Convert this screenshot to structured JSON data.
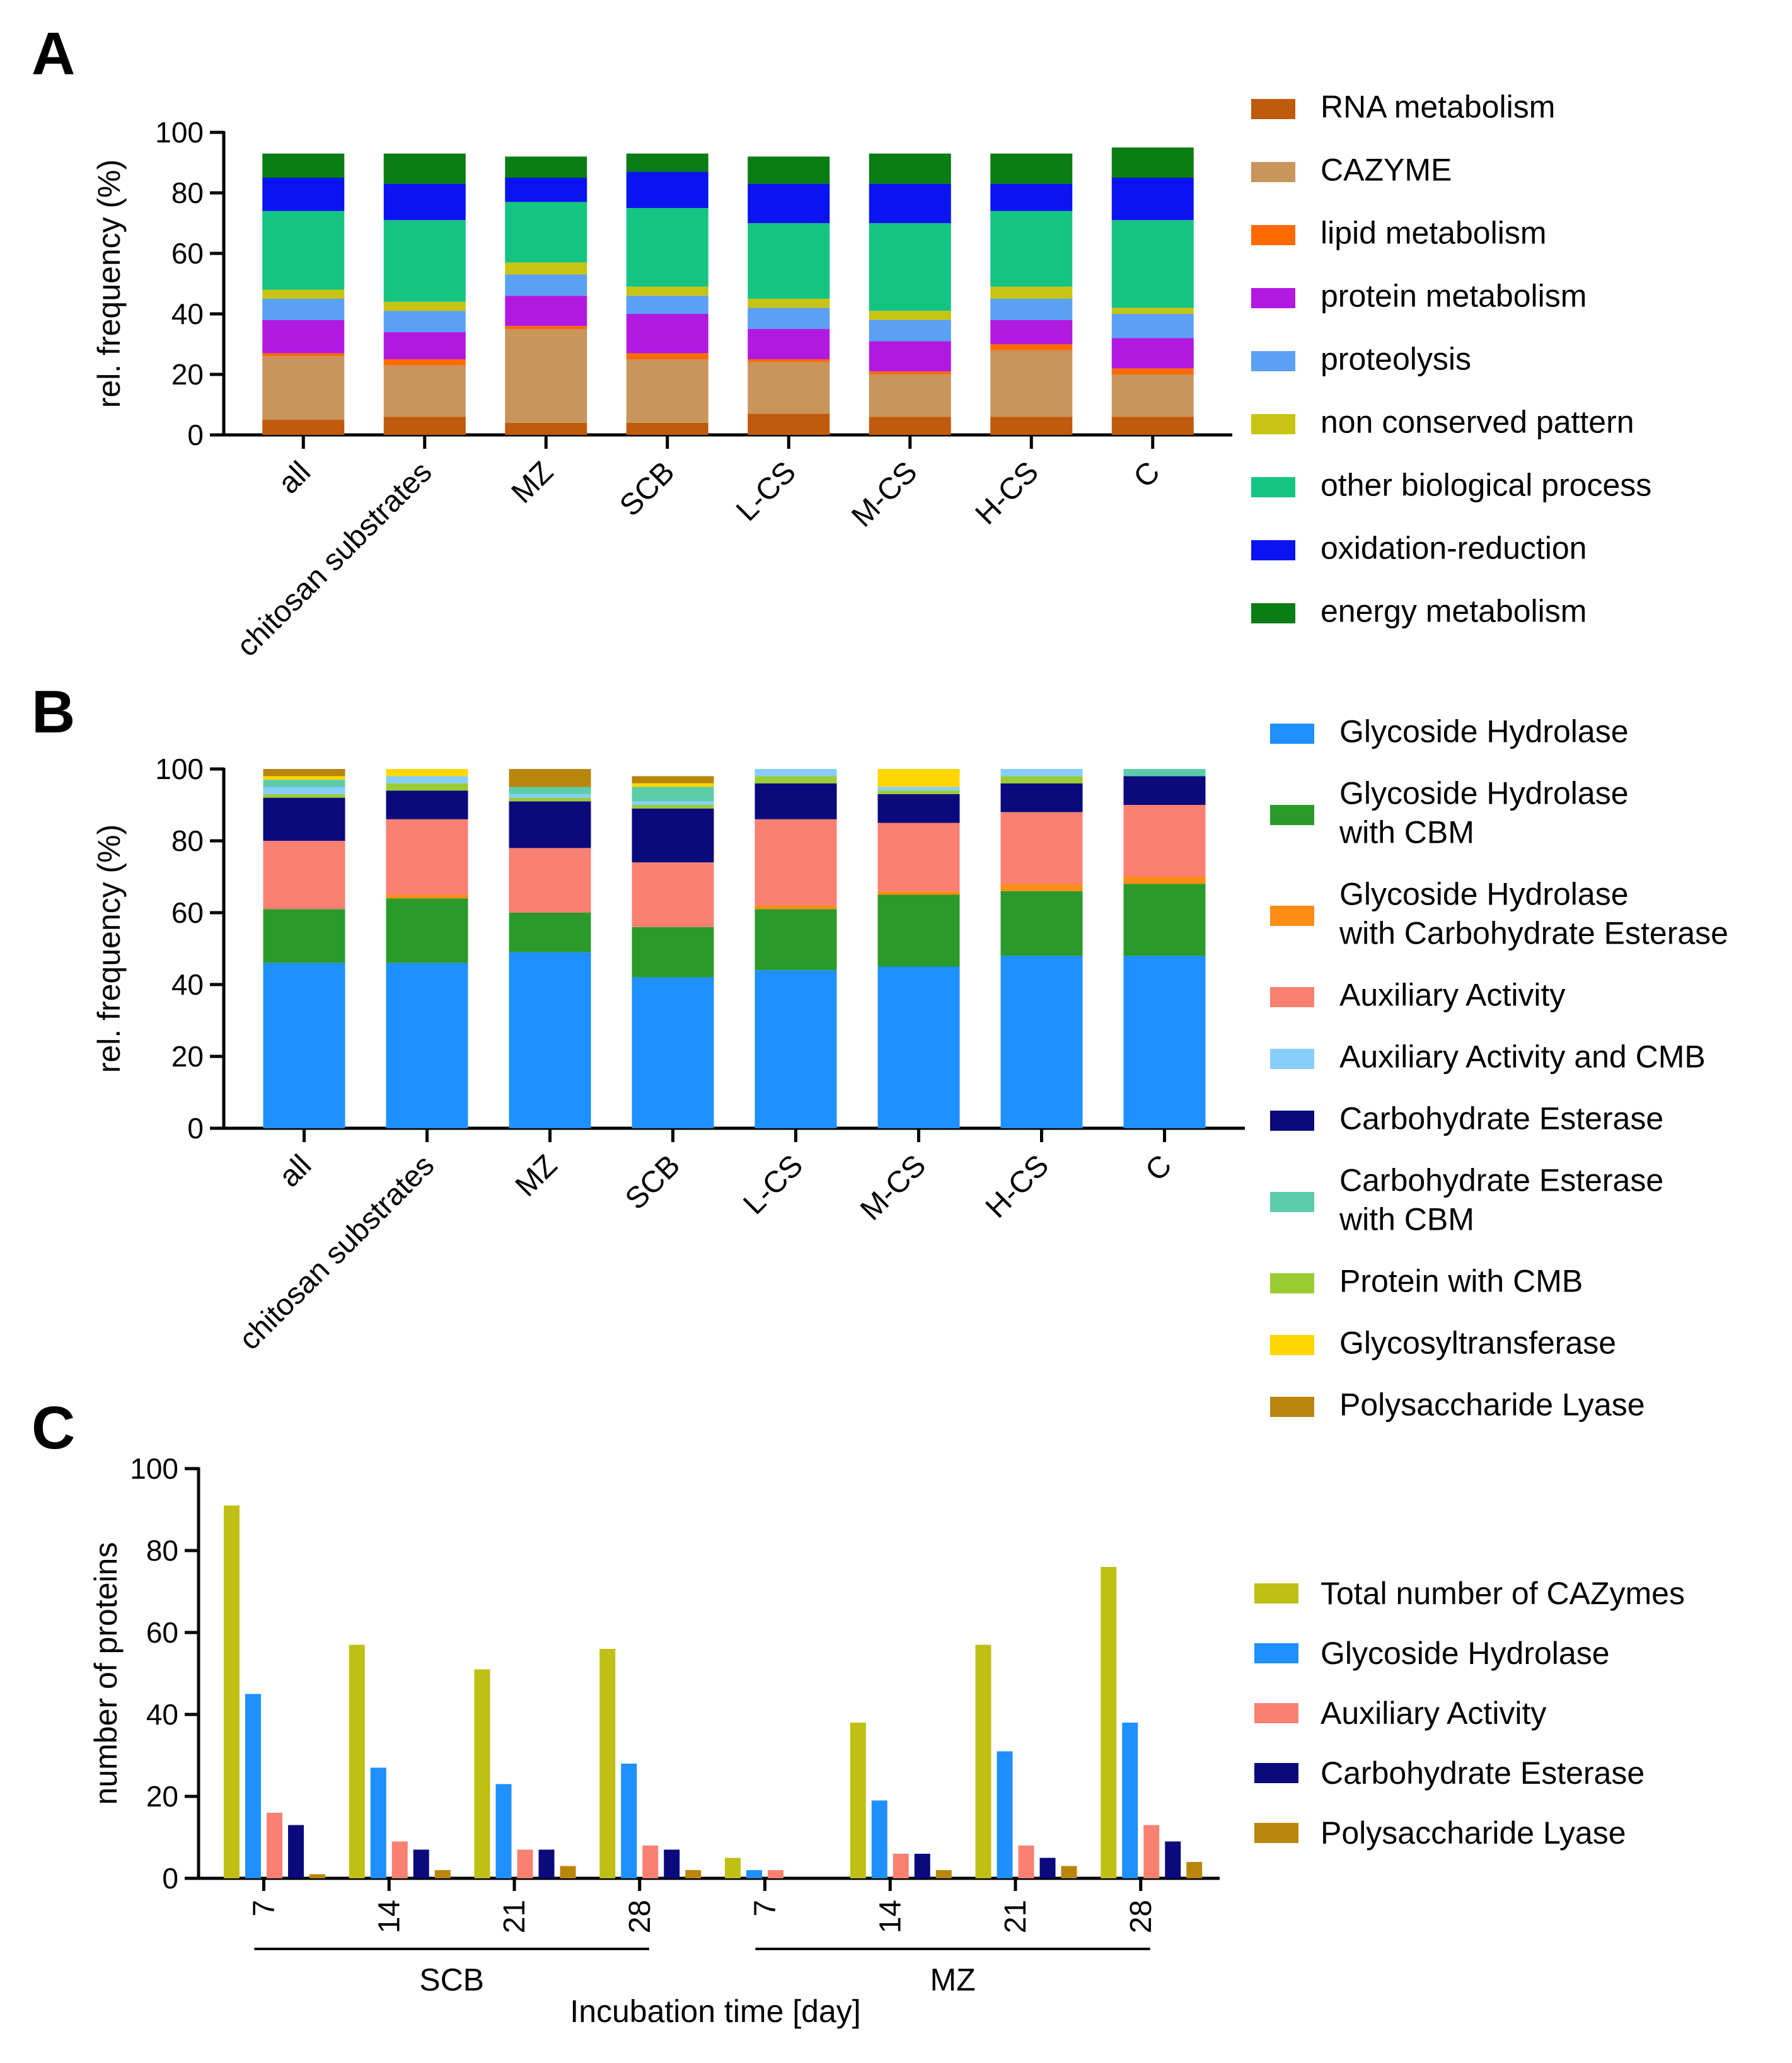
{
  "panels": [
    {
      "letter": "A"
    },
    {
      "letter": "B"
    },
    {
      "letter": "C"
    }
  ],
  "chart_data": [
    {
      "type": "bar",
      "stacked": true,
      "panel": "A",
      "ylabel": "rel. frequency (%)",
      "xlabel": "",
      "ylim": [
        0,
        100
      ],
      "yticks": [
        0,
        20,
        40,
        60,
        80,
        100
      ],
      "categories": [
        "all",
        "chitosan substrates",
        "MZ",
        "SCB",
        "L-CS",
        "M-CS",
        "H-CS",
        "C"
      ],
      "legend_position": "right",
      "series": [
        {
          "name": "RNA metabolism",
          "color": "#C05A0C",
          "values": [
            5,
            6,
            4,
            4,
            7,
            6,
            6,
            6
          ]
        },
        {
          "name": "CAZYME",
          "color": "#C8955A",
          "values": [
            21,
            17,
            31,
            21,
            17,
            14,
            22,
            14
          ]
        },
        {
          "name": "lipid metabolism",
          "color": "#FF6A00",
          "values": [
            1,
            2,
            1,
            2,
            1,
            1,
            2,
            2
          ]
        },
        {
          "name": "protein metabolism",
          "color": "#B219E0",
          "values": [
            11,
            9,
            10,
            13,
            10,
            10,
            8,
            10
          ]
        },
        {
          "name": "proteolysis",
          "color": "#5AA0F5",
          "values": [
            7,
            7,
            7,
            6,
            7,
            7,
            7,
            8
          ]
        },
        {
          "name": "non conserved pattern",
          "color": "#C8C414",
          "values": [
            3,
            3,
            4,
            3,
            3,
            3,
            4,
            2
          ]
        },
        {
          "name": "other biological process",
          "color": "#14C482",
          "values": [
            26,
            27,
            20,
            26,
            25,
            29,
            25,
            29
          ]
        },
        {
          "name": "oxidation-reduction",
          "color": "#0A14F0",
          "values": [
            11,
            12,
            8,
            12,
            13,
            13,
            9,
            14
          ]
        },
        {
          "name": "energy metabolism",
          "color": "#0A7D14",
          "values": [
            8,
            10,
            7,
            6,
            9,
            10,
            10,
            10
          ]
        }
      ]
    },
    {
      "type": "bar",
      "stacked": true,
      "panel": "B",
      "ylabel": "rel. frequency (%)",
      "xlabel": "",
      "ylim": [
        0,
        100
      ],
      "yticks": [
        0,
        20,
        40,
        60,
        80,
        100
      ],
      "categories": [
        "all",
        "chitosan substrates",
        "MZ",
        "SCB",
        "L-CS",
        "M-CS",
        "H-CS",
        "C"
      ],
      "legend_position": "right",
      "series": [
        {
          "name": "Glycoside Hydrolase",
          "lines": [
            "Glycoside Hydrolase"
          ],
          "color": "#1E90FF",
          "values": [
            46,
            46,
            49,
            42,
            44,
            45,
            48,
            48
          ]
        },
        {
          "name": "Glycoside Hydrolase with CBM",
          "lines": [
            "Glycoside Hydrolase",
            "with CBM"
          ],
          "color": "#2A9A2A",
          "values": [
            15,
            18,
            11,
            14,
            17,
            20,
            18,
            20
          ]
        },
        {
          "name": "Glycoside Hydrolase with Carbohydrate Esterase",
          "lines": [
            "Glycoside Hydrolase",
            "with Carbohydrate Esterase"
          ],
          "color": "#FF8C14",
          "values": [
            0,
            1,
            0,
            0,
            1,
            1,
            2,
            2
          ]
        },
        {
          "name": "Auxiliary Activity",
          "lines": [
            "Auxiliary Activity"
          ],
          "color": "#FA8072",
          "values": [
            19,
            21,
            18,
            18,
            24,
            19,
            20,
            20
          ]
        },
        {
          "name": "Auxiliary Activity and CMB",
          "lines": [
            "Auxiliary Activity and CMB"
          ],
          "color": "#87CEFA",
          "values": [
            0,
            0,
            0,
            0,
            0,
            0,
            0,
            0
          ]
        },
        {
          "name": "Carbohydrate Esterase",
          "lines": [
            "Carbohydrate Esterase"
          ],
          "color": "#0A0A7D",
          "values": [
            12,
            8,
            13,
            15,
            10,
            8,
            8,
            8
          ]
        },
        {
          "name": "Carbohydrate Esterase with CBM",
          "lines": [
            "Carbohydrate Esterase",
            "with CBM"
          ],
          "color": "#5ACDA8",
          "values": [
            0,
            0,
            0,
            0,
            0,
            0,
            0,
            0
          ]
        },
        {
          "name": "Protein with CMB",
          "lines": [
            "Protein with CMB"
          ],
          "color": "#9ACD32",
          "values": [
            1,
            2,
            1,
            1,
            2,
            1,
            2,
            0
          ]
        },
        {
          "name": "Auxiliary Activity and CMB (top)",
          "legend": false,
          "color": "#87CEFA",
          "values": [
            2,
            2,
            1,
            1,
            2,
            1,
            2,
            0
          ]
        },
        {
          "name": "Carbohydrate Esterase with CBM (top)",
          "legend": false,
          "color": "#5ACDA8",
          "values": [
            2,
            0,
            2,
            4,
            0,
            0,
            0,
            2
          ]
        },
        {
          "name": "Glycosyltransferase",
          "lines": [
            "Glycosyltransferase"
          ],
          "color": "#FFD700",
          "values": [
            1,
            2,
            0,
            1,
            0,
            5,
            0,
            0
          ]
        },
        {
          "name": "Polysaccharide Lyase",
          "lines": [
            "Polysaccharide Lyase"
          ],
          "color": "#B8860B",
          "values": [
            2,
            0,
            5,
            2,
            0,
            0,
            0,
            0
          ]
        }
      ]
    },
    {
      "type": "bar",
      "stacked": false,
      "panel": "C",
      "ylabel": "number of proteins",
      "xlabel": "Incubation time [day]",
      "ylim": [
        0,
        100
      ],
      "yticks": [
        0,
        20,
        40,
        60,
        80,
        100
      ],
      "groups": [
        {
          "substrate": "SCB",
          "days": [
            "7",
            "14",
            "21",
            "28"
          ]
        },
        {
          "substrate": "MZ",
          "days": [
            "7",
            "14",
            "21",
            "28"
          ]
        }
      ],
      "categories": [
        "7",
        "14",
        "21",
        "28",
        "7",
        "14",
        "21",
        "28"
      ],
      "legend_position": "right",
      "series": [
        {
          "name": "Total number of CAZymes",
          "color": "#BFBF14",
          "values": [
            91,
            57,
            51,
            56,
            5,
            38,
            57,
            76
          ]
        },
        {
          "name": "Glycoside Hydrolase",
          "color": "#1E90FF",
          "values": [
            45,
            27,
            23,
            28,
            2,
            19,
            31,
            38
          ]
        },
        {
          "name": "Auxiliary Activity",
          "color": "#FA8072",
          "values": [
            16,
            9,
            7,
            8,
            2,
            6,
            8,
            13
          ]
        },
        {
          "name": "Carbohydrate Esterase",
          "color": "#0A0A7D",
          "values": [
            13,
            7,
            7,
            7,
            0,
            6,
            5,
            9
          ]
        },
        {
          "name": "Polysaccharide Lyase",
          "color": "#B8860B",
          "values": [
            1,
            2,
            3,
            2,
            0,
            2,
            3,
            4
          ]
        }
      ]
    }
  ]
}
